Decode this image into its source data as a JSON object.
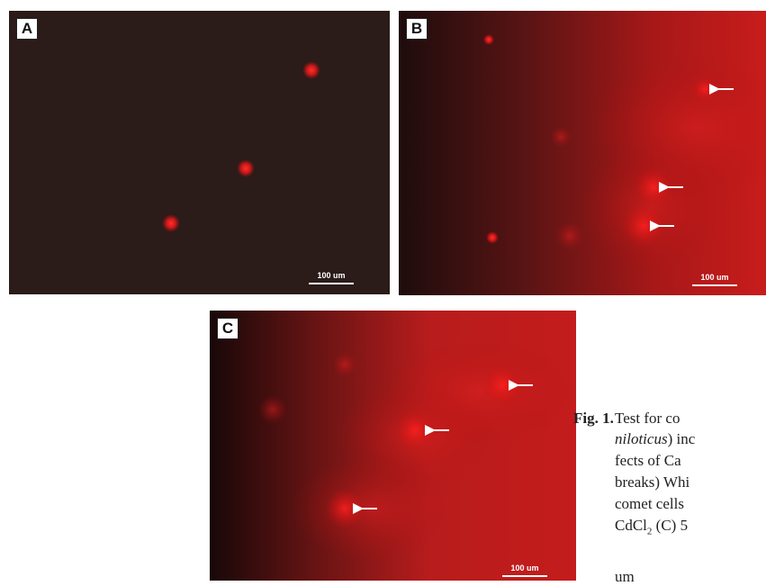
{
  "panels": [
    {
      "label": "A",
      "scale": "100 um"
    },
    {
      "label": "B",
      "scale": "100 um"
    },
    {
      "label": "C",
      "scale": "100 um"
    }
  ],
  "caption": {
    "label": "Fig. 1.",
    "lines": [
      [
        "Test for co"
      ],
      [
        "niloticus",
        ") inc"
      ],
      [
        "fects of Ca"
      ],
      [
        "breaks) Whi"
      ],
      [
        "comet cells"
      ],
      [
        "CdCl",
        "2",
        " (C) 5"
      ],
      [
        "um"
      ]
    ]
  }
}
